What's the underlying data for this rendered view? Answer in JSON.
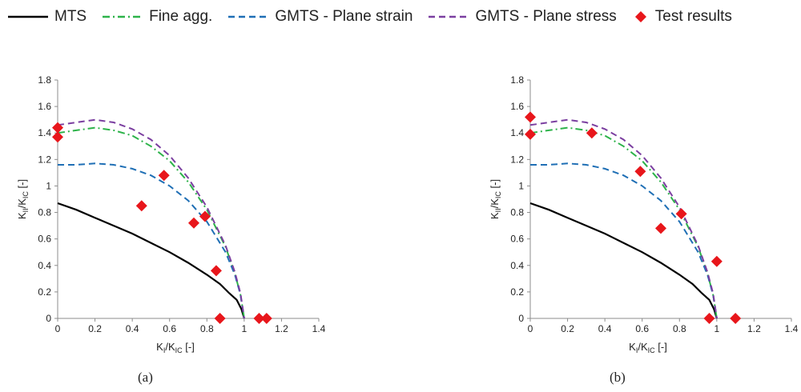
{
  "legend": {
    "items": [
      {
        "label": "MTS",
        "color": "#000000",
        "dash": "",
        "marker": false
      },
      {
        "label": "Fine agg.",
        "color": "#2DB34A",
        "dash": "9 4 2 4",
        "marker": false
      },
      {
        "label": "GMTS - Plane strain",
        "color": "#1F6FB5",
        "dash": "8 5",
        "marker": false
      },
      {
        "label": "GMTS - Plane stress",
        "color": "#7B3FA0",
        "dash": "8 5",
        "marker": false
      },
      {
        "label": "Test results",
        "color": "#E8161B",
        "dash": "",
        "marker": true
      }
    ]
  },
  "panels": [
    {
      "label": "(a)"
    },
    {
      "label": "(b)"
    }
  ],
  "chart_data": [
    {
      "type": "line",
      "xlabel_main": "K",
      "xlabel_sub": "I",
      "xlabel_slash": "/K",
      "xlabel_sub2": "IC",
      "xlabel_unit": " [-]",
      "ylabel_main": "K",
      "ylabel_sub": "II",
      "ylabel_slash": "/K",
      "ylabel_sub2": "IC",
      "ylabel_unit": " [-]",
      "xlim": [
        0,
        1.4
      ],
      "ylim": [
        0,
        1.8
      ],
      "xticks": [
        "0",
        "0.2",
        "0.4",
        "0.6",
        "0.8",
        "1",
        "1.2",
        "1.4"
      ],
      "yticks": [
        "0",
        "0.2",
        "0.4",
        "0.6",
        "0.8",
        "1",
        "1.2",
        "1.4",
        "1.6",
        "1.8"
      ],
      "series": [
        {
          "name": "MTS",
          "color": "#000000",
          "dash": "",
          "x": [
            0,
            0.1,
            0.2,
            0.3,
            0.4,
            0.5,
            0.6,
            0.7,
            0.8,
            0.87,
            0.92,
            0.96,
            0.985,
            1.0
          ],
          "y": [
            0.87,
            0.82,
            0.76,
            0.7,
            0.64,
            0.57,
            0.5,
            0.42,
            0.33,
            0.26,
            0.19,
            0.14,
            0.07,
            0.0
          ]
        },
        {
          "name": "Fine agg.",
          "color": "#2DB34A",
          "dash": "9 4 2 4",
          "x": [
            0,
            0.1,
            0.2,
            0.3,
            0.4,
            0.5,
            0.6,
            0.7,
            0.8,
            0.9,
            0.95,
            0.98,
            1.0
          ],
          "y": [
            1.4,
            1.42,
            1.44,
            1.42,
            1.38,
            1.3,
            1.19,
            1.03,
            0.82,
            0.54,
            0.34,
            0.18,
            0.0
          ]
        },
        {
          "name": "GMTS - Plane strain",
          "color": "#1F6FB5",
          "dash": "8 5",
          "x": [
            0,
            0.1,
            0.2,
            0.3,
            0.4,
            0.5,
            0.6,
            0.7,
            0.8,
            0.9,
            0.95,
            0.98,
            1.0
          ],
          "y": [
            1.16,
            1.16,
            1.17,
            1.16,
            1.13,
            1.08,
            1.0,
            0.89,
            0.73,
            0.5,
            0.33,
            0.18,
            0.0
          ]
        },
        {
          "name": "GMTS - Plane stress",
          "color": "#7B3FA0",
          "dash": "8 5",
          "x": [
            0,
            0.1,
            0.2,
            0.3,
            0.4,
            0.5,
            0.6,
            0.7,
            0.8,
            0.9,
            0.95,
            0.98,
            1.0
          ],
          "y": [
            1.46,
            1.48,
            1.5,
            1.48,
            1.43,
            1.35,
            1.23,
            1.06,
            0.84,
            0.55,
            0.35,
            0.19,
            0.0
          ]
        }
      ],
      "points": {
        "name": "Test results",
        "color": "#E8161B",
        "x": [
          0.0,
          0.0,
          0.45,
          0.57,
          0.73,
          0.79,
          0.85,
          0.87,
          1.08,
          1.12
        ],
        "y": [
          1.44,
          1.37,
          0.85,
          1.08,
          0.72,
          0.77,
          0.36,
          0.0,
          0.0,
          0.0
        ]
      }
    },
    {
      "type": "line",
      "xlabel_main": "K",
      "xlabel_sub": "I",
      "xlabel_slash": "/K",
      "xlabel_sub2": "IC",
      "xlabel_unit": " [-]",
      "ylabel_main": "K",
      "ylabel_sub": "II",
      "ylabel_slash": "/K",
      "ylabel_sub2": "IC",
      "ylabel_unit": " [-]",
      "xlim": [
        0,
        1.4
      ],
      "ylim": [
        0,
        1.8
      ],
      "xticks": [
        "0",
        "0.2",
        "0.4",
        "0.6",
        "0.8",
        "1",
        "1.2",
        "1.4"
      ],
      "yticks": [
        "0",
        "0.2",
        "0.4",
        "0.6",
        "0.8",
        "1",
        "1.2",
        "1.4",
        "1.6",
        "1.8"
      ],
      "series": [
        {
          "name": "MTS",
          "color": "#000000",
          "dash": "",
          "x": [
            0,
            0.1,
            0.2,
            0.3,
            0.4,
            0.5,
            0.6,
            0.7,
            0.8,
            0.87,
            0.92,
            0.96,
            0.985,
            1.0
          ],
          "y": [
            0.87,
            0.82,
            0.76,
            0.7,
            0.64,
            0.57,
            0.5,
            0.42,
            0.33,
            0.26,
            0.19,
            0.14,
            0.07,
            0.0
          ]
        },
        {
          "name": "Fine agg.",
          "color": "#2DB34A",
          "dash": "9 4 2 4",
          "x": [
            0,
            0.1,
            0.2,
            0.3,
            0.4,
            0.5,
            0.6,
            0.7,
            0.8,
            0.9,
            0.95,
            0.98,
            1.0
          ],
          "y": [
            1.4,
            1.42,
            1.44,
            1.42,
            1.38,
            1.3,
            1.19,
            1.03,
            0.82,
            0.54,
            0.34,
            0.18,
            0.0
          ]
        },
        {
          "name": "GMTS - Plane strain",
          "color": "#1F6FB5",
          "dash": "8 5",
          "x": [
            0,
            0.1,
            0.2,
            0.3,
            0.4,
            0.5,
            0.6,
            0.7,
            0.8,
            0.9,
            0.95,
            0.98,
            1.0
          ],
          "y": [
            1.16,
            1.16,
            1.17,
            1.16,
            1.13,
            1.08,
            1.0,
            0.89,
            0.73,
            0.5,
            0.33,
            0.18,
            0.0
          ]
        },
        {
          "name": "GMTS - Plane stress",
          "color": "#7B3FA0",
          "dash": "8 5",
          "x": [
            0,
            0.1,
            0.2,
            0.3,
            0.4,
            0.5,
            0.6,
            0.7,
            0.8,
            0.9,
            0.95,
            0.98,
            1.0
          ],
          "y": [
            1.46,
            1.48,
            1.5,
            1.48,
            1.43,
            1.35,
            1.23,
            1.06,
            0.84,
            0.55,
            0.35,
            0.19,
            0.0
          ]
        }
      ],
      "points": {
        "name": "Test results",
        "color": "#E8161B",
        "x": [
          0.0,
          0.0,
          0.33,
          0.59,
          0.7,
          0.81,
          1.0,
          0.96,
          1.1
        ],
        "y": [
          1.52,
          1.39,
          1.4,
          1.11,
          0.68,
          0.79,
          0.43,
          0.0,
          0.0
        ]
      }
    }
  ]
}
